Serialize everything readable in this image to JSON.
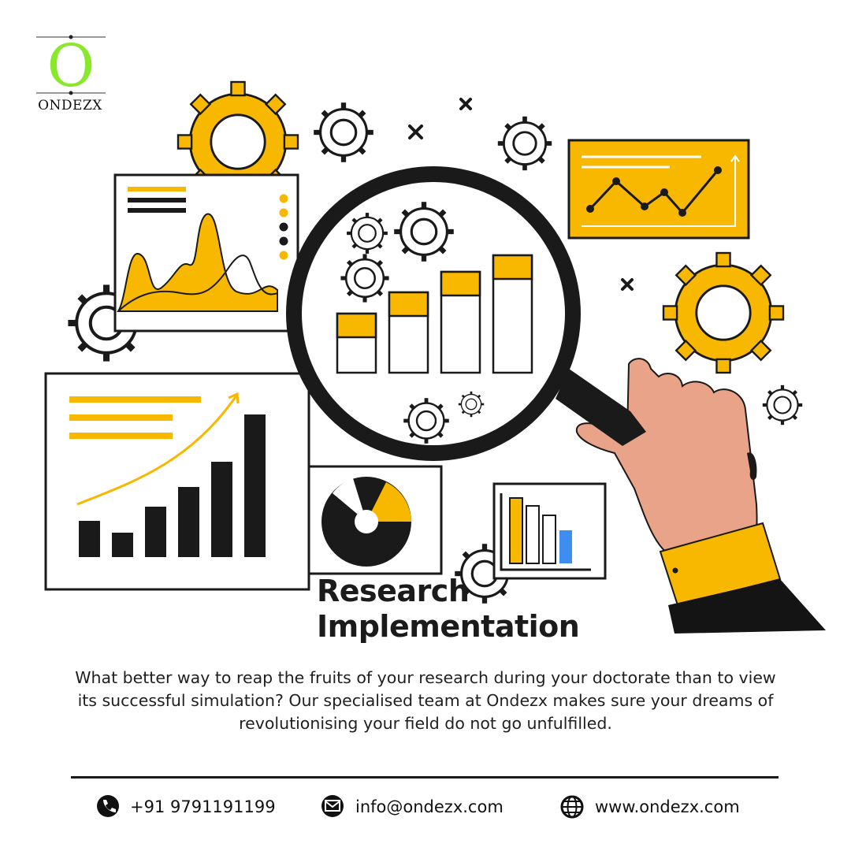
{
  "brand": {
    "name": "ONDEZX",
    "logo_letter": "O"
  },
  "headline": {
    "line1": "Research",
    "line2": "Implementation"
  },
  "body": "What better way to reap the fruits of your research during your doctorate than to view its successful simulation? Our specialised team at Ondezx makes sure your dreams of revolutionising your field do not go unfulfilled.",
  "contact": {
    "phone": "+91 9791191199",
    "email": "info@ondezx.com",
    "website": "www.ondezx.com"
  },
  "colors": {
    "accent": "#F9B800",
    "logo_green": "#8AE82A",
    "ink": "#111111",
    "skin": "#E8A388",
    "sleeve": "#141414",
    "bar_blue": "#3D8EF0"
  }
}
